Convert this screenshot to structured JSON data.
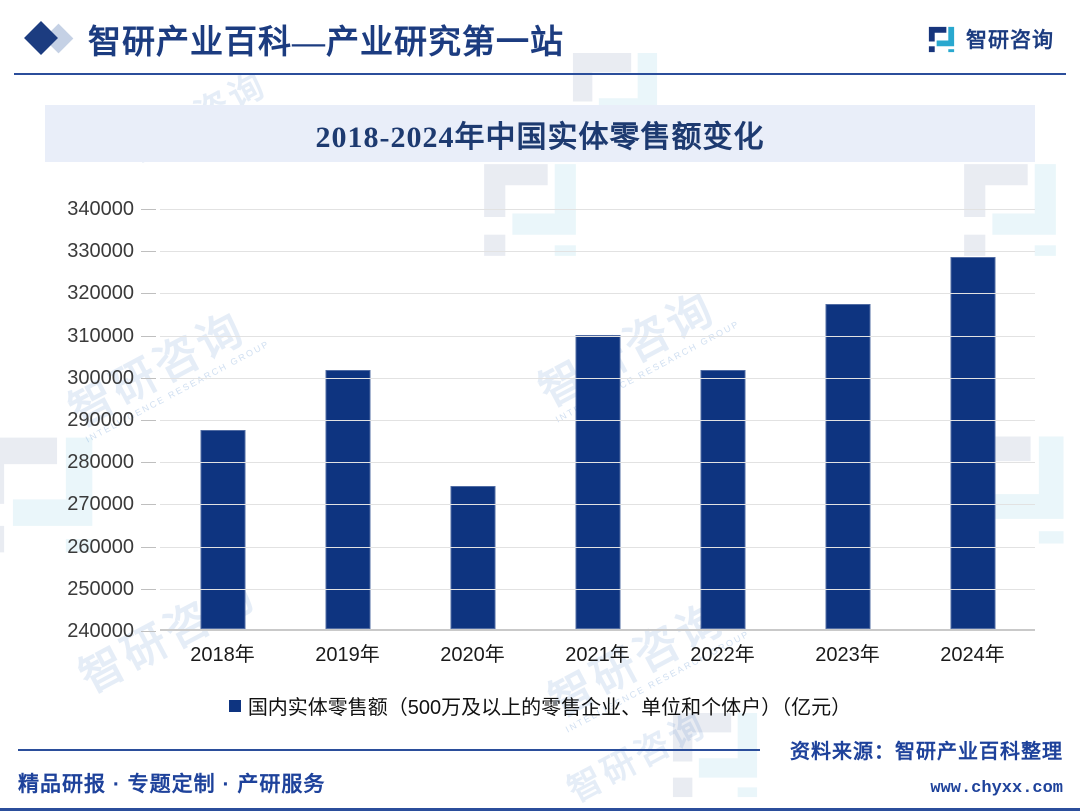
{
  "header": {
    "title": "智研产业百科—产业研究第一站",
    "logo_text": "智研咨询"
  },
  "chart": {
    "title": "2018-2024年中国实体零售额变化",
    "legend": "国内实体零售额（500万及以上的零售企业、单位和个体户）（亿元）"
  },
  "chart_data": {
    "type": "bar",
    "title": "2018-2024年中国实体零售额变化",
    "categories": [
      "2018年",
      "2019年",
      "2020年",
      "2021年",
      "2022年",
      "2023年",
      "2024年"
    ],
    "values": [
      287200,
      301300,
      273800,
      309600,
      301300,
      317000,
      328100
    ],
    "xlabel": "",
    "ylabel": "",
    "ylim": [
      240000,
      340000
    ],
    "ytick_step": 10000,
    "grid": true,
    "legend": [
      "国内实体零售额（500万及以上的零售企业、单位和个体户）（亿元）"
    ],
    "legend_position": "bottom",
    "bar_color": "#0e3480"
  },
  "footer": {
    "services": "精品研报 · 专题定制 · 产研服务",
    "source": "资料来源：智研产业百科整理",
    "website": "www.chyxx.com"
  },
  "watermark": {
    "brand": "智研咨询",
    "group": "INTELLIGENCE RESEARCH GROUP"
  },
  "colors": {
    "brand_navy": "#1c3c80",
    "bar": "#0e3480",
    "title_bar_bg": "#e9eef9",
    "grid": "#e2e2e2",
    "rule_blue": "#2b4e9b",
    "footer_blue": "#1e429b"
  }
}
